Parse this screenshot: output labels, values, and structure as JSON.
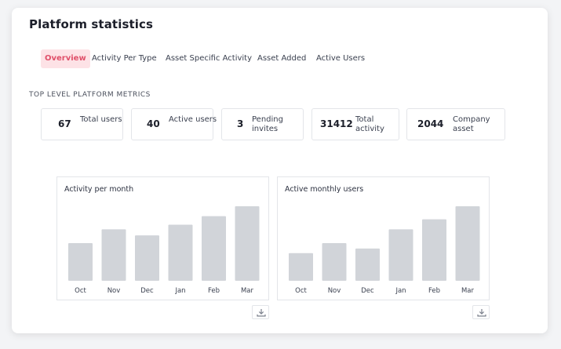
{
  "page": {
    "title": "Platform statistics"
  },
  "tabs": [
    {
      "label": "Overview",
      "active": true
    },
    {
      "label": "Activity Per Type",
      "active": false
    },
    {
      "label": "Asset Specific Activity",
      "active": false
    },
    {
      "label": "Asset Added",
      "active": false
    },
    {
      "label": "Active Users",
      "active": false
    }
  ],
  "metrics_section": {
    "label": "TOP LEVEL PLATFORM METRICS",
    "items": [
      {
        "value": "67",
        "label": "Total users"
      },
      {
        "value": "40",
        "label": "Active users"
      },
      {
        "value": "3",
        "label": "Pending invites"
      },
      {
        "value": "31412",
        "label": "Total activity"
      },
      {
        "value": "2044",
        "label": "Company asset"
      }
    ]
  },
  "colors": {
    "accent": "#e0506a",
    "accent_bg": "#fde2e6",
    "bar": "#d1d4d9"
  },
  "icons": {
    "download": "download-icon"
  },
  "chart_data": [
    {
      "type": "bar",
      "title": "Activity per month",
      "categories": [
        "Oct",
        "Nov",
        "Dec",
        "Jan",
        "Feb",
        "Mar"
      ],
      "values": [
        49,
        67,
        59,
        73,
        84,
        97
      ],
      "ylim": [
        0,
        100
      ],
      "grid": false
    },
    {
      "type": "bar",
      "title": "Active monthly users",
      "categories": [
        "Oct",
        "Nov",
        "Dec",
        "Jan",
        "Feb",
        "Mar"
      ],
      "values": [
        36,
        49,
        42,
        67,
        80,
        97
      ],
      "ylim": [
        0,
        100
      ],
      "grid": false
    }
  ]
}
